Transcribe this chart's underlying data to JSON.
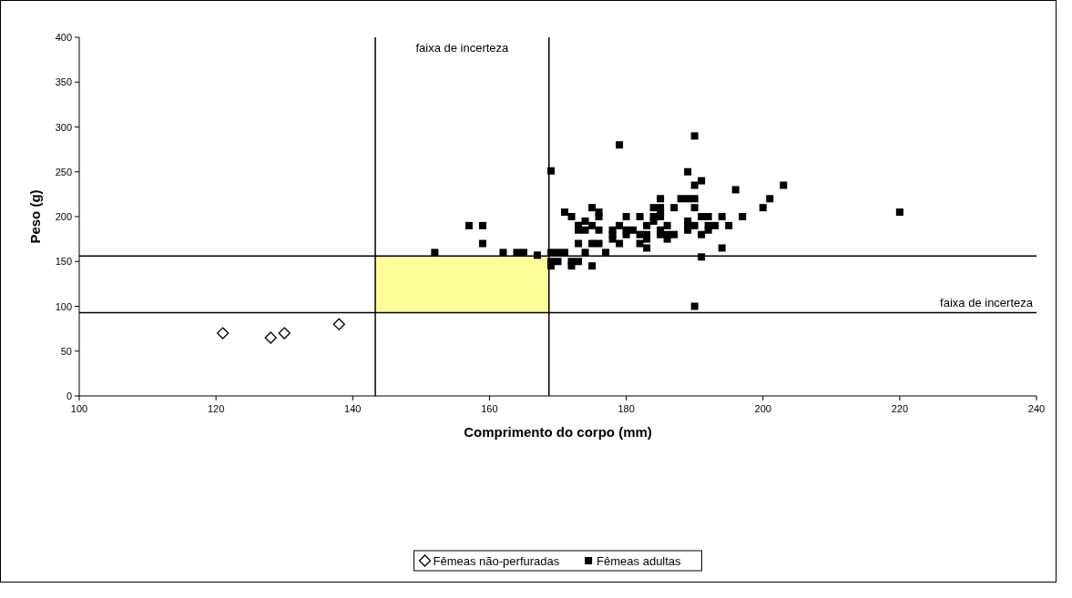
{
  "chart_data": {
    "type": "scatter",
    "xlabel": "Comprimento do corpo (mm)",
    "ylabel": "Peso (g)",
    "xlim": [
      100,
      240
    ],
    "xticks": [
      100,
      120,
      140,
      160,
      180,
      200,
      220,
      240
    ],
    "ylim": [
      0,
      400
    ],
    "yticks": [
      0,
      50,
      100,
      150,
      200,
      250,
      300,
      350,
      400
    ],
    "grid": false,
    "legend": "bottom",
    "ref_lines": [
      {
        "axis": "x",
        "value": 143.3
      },
      {
        "axis": "x",
        "value": 168.7
      },
      {
        "axis": "y",
        "value": 93
      },
      {
        "axis": "y",
        "value": 156
      }
    ],
    "annotations": [
      "faixa de incerteza",
      "faixa de incerteza"
    ],
    "series": [
      {
        "name": "Fêmeas não-perfuradas",
        "color": "#000000",
        "marker": "diamond",
        "x": [
          121,
          128,
          130,
          138
        ],
        "values": [
          70,
          65,
          70,
          80
        ]
      },
      {
        "name": "Fêmeas adultas",
        "color": "#000000",
        "marker": "square",
        "x": [
          152,
          157,
          159,
          159,
          162,
          164,
          165,
          167,
          169,
          169,
          170,
          171,
          169,
          170,
          169,
          171,
          172,
          172,
          172,
          173,
          173,
          173,
          173,
          173,
          174,
          174,
          174,
          175,
          175,
          175,
          175,
          176,
          176,
          176,
          176,
          177,
          178,
          178,
          178,
          179,
          179,
          179,
          180,
          180,
          180,
          181,
          182,
          182,
          182,
          183,
          183,
          183,
          183,
          184,
          184,
          184,
          185,
          185,
          185,
          185,
          185,
          185,
          186,
          186,
          186,
          187,
          187,
          188,
          189,
          189,
          189,
          189,
          189,
          190,
          190,
          190,
          190,
          190,
          190,
          191,
          191,
          191,
          191,
          192,
          192,
          192,
          193,
          194,
          194,
          195,
          196,
          197,
          200,
          201,
          203,
          220
        ],
        "values": [
          160,
          190,
          190,
          170,
          160,
          160,
          160,
          157,
          251,
          160,
          160,
          160,
          150,
          150,
          145,
          205,
          200,
          145,
          150,
          150,
          170,
          185,
          190,
          190,
          195,
          185,
          160,
          210,
          190,
          170,
          145,
          205,
          200,
          185,
          170,
          160,
          185,
          180,
          175,
          280,
          190,
          170,
          200,
          185,
          180,
          185,
          200,
          180,
          170,
          190,
          180,
          175,
          165,
          210,
          200,
          195,
          220,
          210,
          205,
          200,
          185,
          180,
          190,
          180,
          175,
          210,
          180,
          220,
          250,
          220,
          195,
          190,
          185,
          290,
          235,
          220,
          210,
          190,
          100,
          240,
          200,
          180,
          155,
          200,
          190,
          185,
          190,
          200,
          165,
          190,
          230,
          200,
          210,
          220,
          235,
          205
        ]
      }
    ]
  }
}
